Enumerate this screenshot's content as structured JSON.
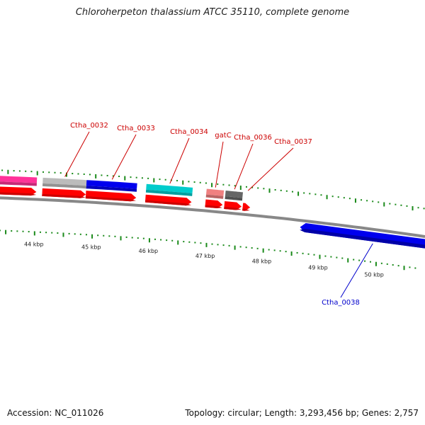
{
  "title": "Chloroherpeton thalassium ATCC 35110, complete genome",
  "footer": {
    "accession": "Accession: NC_011026",
    "summary": "Topology: circular; Length: 3,293,456 bp; Genes: 2,757"
  },
  "colors": {
    "forward_label": "#cc0000",
    "reverse_label": "#0000cc",
    "cds_red": "#ff0000",
    "tick": "#1a8a1a",
    "backbone": "#888888"
  },
  "scale_labels": [
    {
      "label": "44 kbp",
      "kbp": 44
    },
    {
      "label": "45 kbp",
      "kbp": 45
    },
    {
      "label": "46 kbp",
      "kbp": 46
    },
    {
      "label": "47 kbp",
      "kbp": 47
    },
    {
      "label": "48 kbp",
      "kbp": 48
    },
    {
      "label": "49 kbp",
      "kbp": 49
    },
    {
      "label": "50 kbp",
      "kbp": 50
    }
  ],
  "genes": [
    {
      "name": "",
      "strand": "forward",
      "color": "#ff3399",
      "start_kbp": 43.0,
      "end_kbp": 44.0
    },
    {
      "name": "Ctha_0032",
      "strand": "forward",
      "color": "#bbbbbb",
      "start_kbp": 44.1,
      "end_kbp": 44.85
    },
    {
      "name": "Ctha_0033",
      "strand": "forward",
      "color": "#0000ee",
      "start_kbp": 44.85,
      "end_kbp": 45.72
    },
    {
      "name": "Ctha_0034",
      "strand": "forward",
      "color": "#00cccc",
      "start_kbp": 45.88,
      "end_kbp": 46.68
    },
    {
      "name": "gatC",
      "strand": "forward",
      "color": "#f08080",
      "start_kbp": 46.92,
      "end_kbp": 47.22
    },
    {
      "name": "Ctha_0036",
      "strand": "forward",
      "color": "#666666",
      "start_kbp": 47.25,
      "end_kbp": 47.55
    },
    {
      "name": "Ctha_0037",
      "strand": "forward",
      "color": "#ffffff",
      "start_kbp": 47.57,
      "end_kbp": 47.7
    },
    {
      "name": "Ctha_0038",
      "strand": "reverse",
      "color": "#0000ee",
      "start_kbp": 48.6,
      "end_kbp": 51.2
    }
  ]
}
